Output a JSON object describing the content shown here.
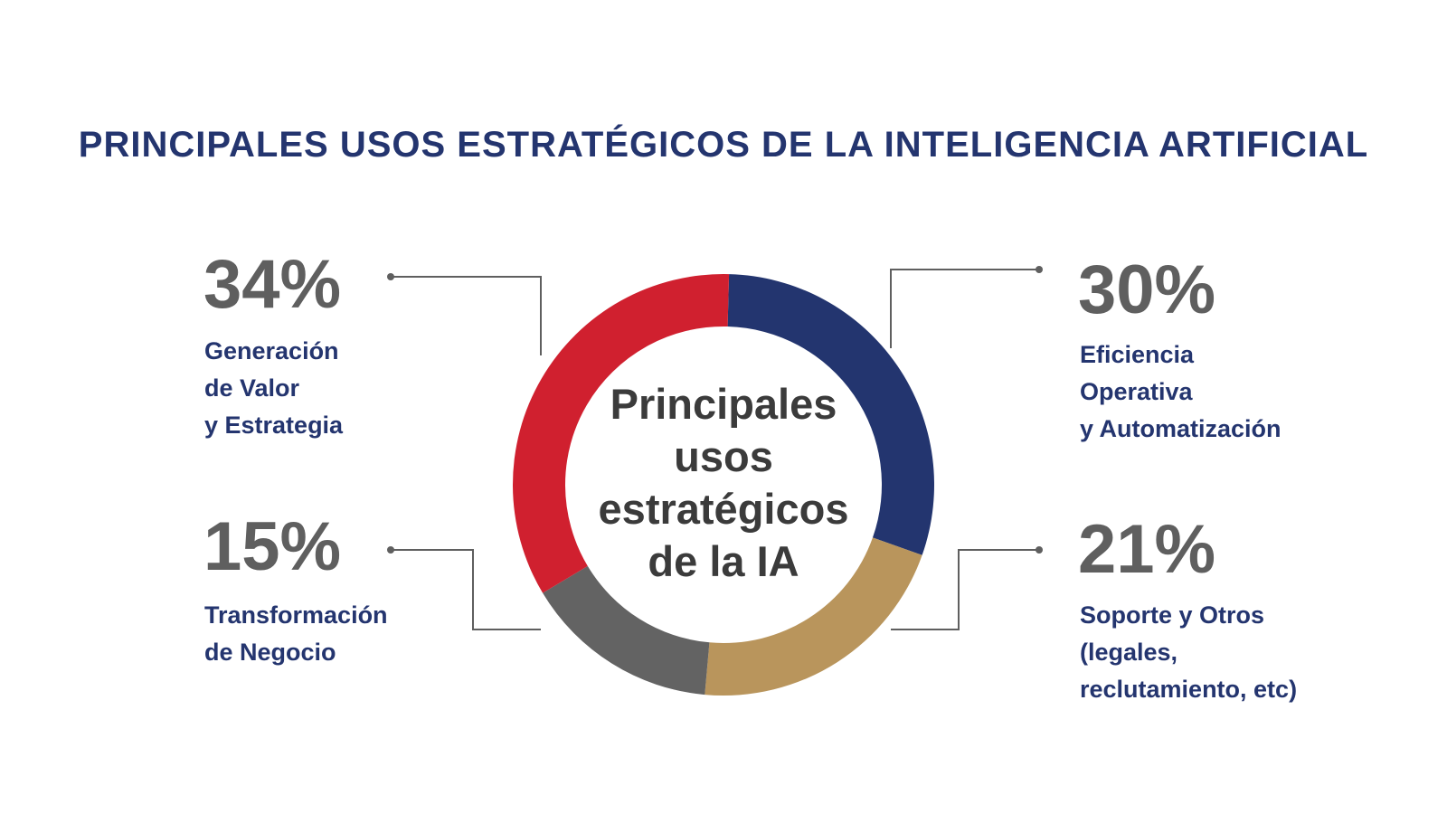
{
  "title": "PRINCIPALES USOS ESTRATÉGICOS DE LA INTELIGENCIA ARTIFICIAL",
  "center_label": [
    "Principales",
    "usos",
    "estratégicos",
    "de la IA"
  ],
  "chart_data": {
    "type": "pie",
    "title": "PRINCIPALES USOS ESTRATÉGICOS DE LA INTELIGENCIA ARTIFICIAL",
    "donut": true,
    "center_text": "Principales usos estratégicos de la IA",
    "slices": [
      {
        "label_lines": [
          "Eficiencia",
          "Operativa",
          "y Automatización"
        ],
        "value": 30,
        "display": "30%",
        "color": "#23356f"
      },
      {
        "label_lines": [
          "Soporte y Otros",
          "(legales,",
          "reclutamiento, etc)"
        ],
        "value": 21,
        "display": "21%",
        "color": "#b9955c"
      },
      {
        "label_lines": [
          "Transformación",
          "de Negocio"
        ],
        "value": 15,
        "display": "15%",
        "color": "#636363"
      },
      {
        "label_lines": [
          "Generación",
          "de Valor",
          "y Estrategia"
        ],
        "value": 34,
        "display": "34%",
        "color": "#d0202f"
      }
    ]
  }
}
